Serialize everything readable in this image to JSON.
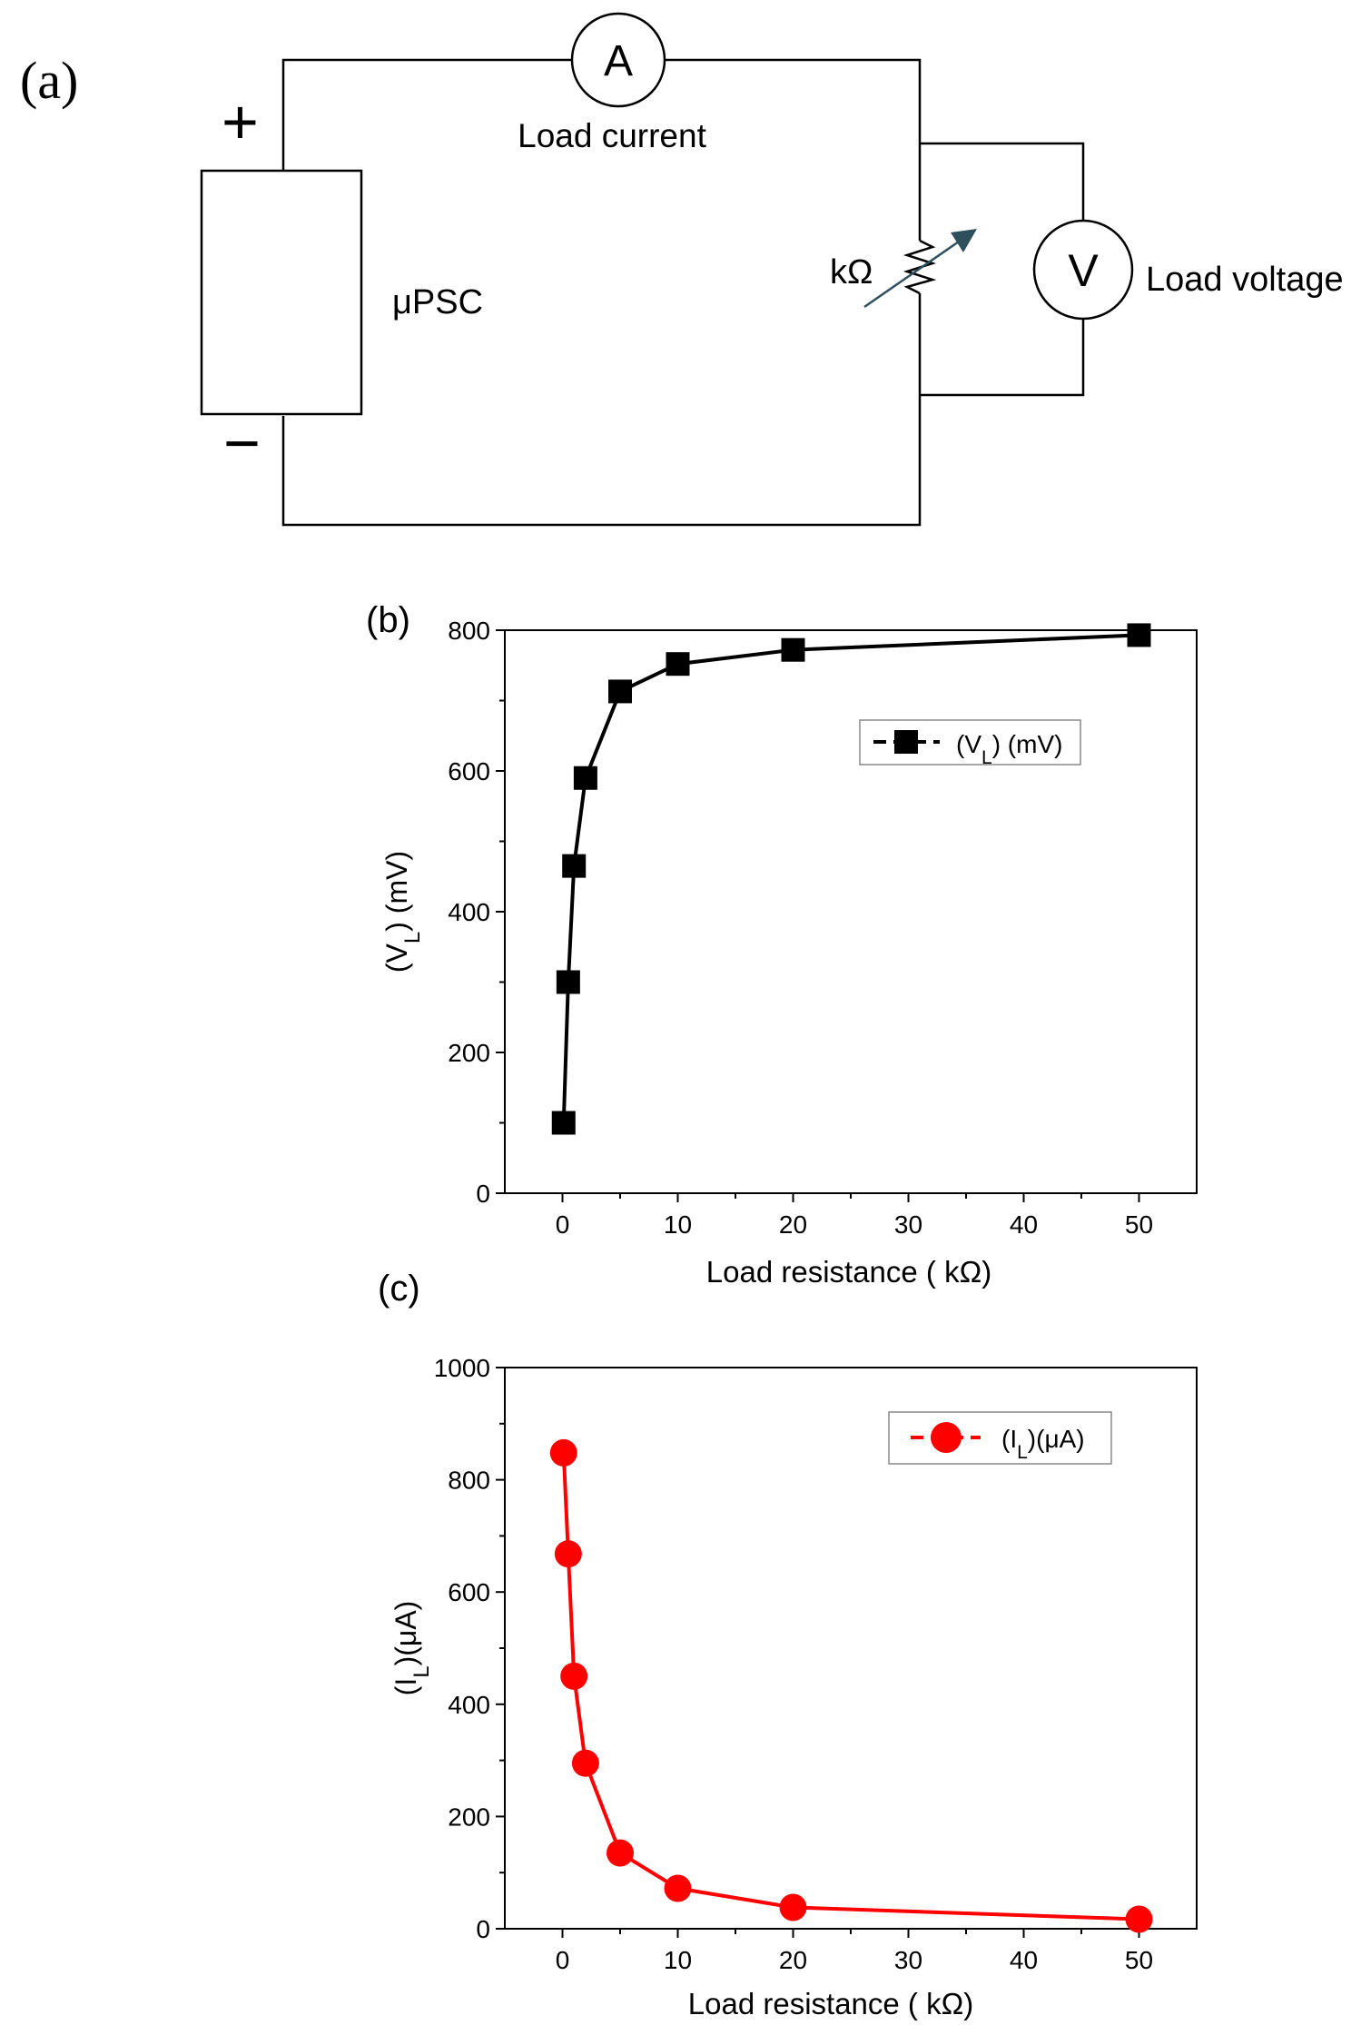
{
  "panel_a": {
    "label": "(a)",
    "plus": "+",
    "minus": "−",
    "ammeter_symbol": "A",
    "ammeter_caption": "Load current",
    "voltmeter_symbol": "V",
    "voltmeter_caption": "Load voltage",
    "resistor_label": "kΩ",
    "source_label": "μPSC",
    "colors": {
      "wire": "#000000",
      "arrow": "#2f4f5c"
    }
  },
  "chart_data": [
    {
      "panel_label": "(b)",
      "type": "line",
      "x": [
        0.1,
        0.5,
        1,
        2,
        5,
        10,
        20,
        50
      ],
      "series": [
        {
          "name": "(V_L) (mV)",
          "legend_main": "(V",
          "legend_sub": "L",
          "legend_tail": ") (mV)",
          "values": [
            100,
            300,
            465,
            590,
            713,
            752,
            772,
            793
          ],
          "color": "#000000",
          "marker": "square"
        }
      ],
      "xlabel": "Load resistance ( kΩ)",
      "ylabel": "(V_L) (mV)",
      "ylabel_main": "(V",
      "ylabel_sub": "L",
      "ylabel_tail": ") (mV)",
      "xlim": [
        -5,
        55
      ],
      "ylim": [
        0,
        800
      ],
      "xticks": [
        0,
        10,
        20,
        30,
        40,
        50
      ],
      "yticks": [
        0,
        200,
        400,
        600,
        800
      ],
      "grid": false,
      "legend_position": "top-right"
    },
    {
      "panel_label": "(c)",
      "type": "line",
      "x": [
        0.1,
        0.5,
        1,
        2,
        5,
        10,
        20,
        50
      ],
      "series": [
        {
          "name": "(I_L)(μA)",
          "legend_main": "(I",
          "legend_sub": "L",
          "legend_tail": ")(μA)",
          "values": [
            848,
            668,
            450,
            295,
            135,
            72,
            38,
            17
          ],
          "color": "#ff0000",
          "marker": "circle"
        }
      ],
      "xlabel": "Load resistance ( kΩ)",
      "ylabel": "(I_L)(μA)",
      "ylabel_main": "(I",
      "ylabel_sub": "L",
      "ylabel_tail": ")(μA)",
      "xlim": [
        -5,
        55
      ],
      "ylim": [
        0,
        1000
      ],
      "xticks": [
        0,
        10,
        20,
        30,
        40,
        50
      ],
      "yticks": [
        0,
        200,
        400,
        600,
        800,
        1000
      ],
      "grid": false,
      "legend_position": "top-right"
    }
  ]
}
